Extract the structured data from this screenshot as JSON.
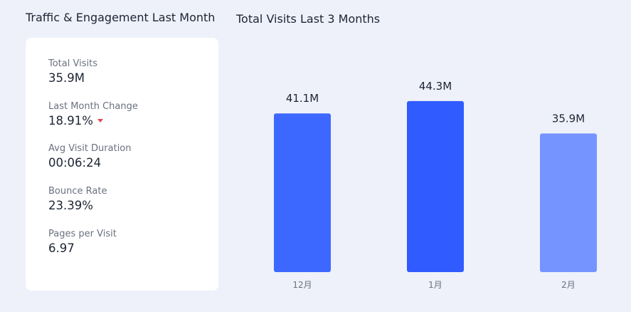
{
  "left_title": "Traffic & Engagement Last Month",
  "stats": [
    {
      "label": "Total Visits",
      "value": "35.9M"
    },
    {
      "label": "Last Month Change",
      "value": "18.91%"
    },
    {
      "label": "Avg Visit Duration",
      "value": "00:06:24"
    },
    {
      "label": "Bounce Rate",
      "value": "23.39%"
    },
    {
      "label": "Pages per Visit",
      "value": "6.97"
    }
  ],
  "chart_data": {
    "type": "bar",
    "title": "Total Visits Last 3 Months",
    "categories": [
      "12月",
      "1月",
      "2月"
    ],
    "values": [
      41.1,
      44.3,
      35.9
    ],
    "value_labels": [
      "41.1M",
      "44.3M",
      "35.9M"
    ],
    "colors": [
      "#3d68ff",
      "#2f5bff",
      "#7694ff"
    ]
  }
}
